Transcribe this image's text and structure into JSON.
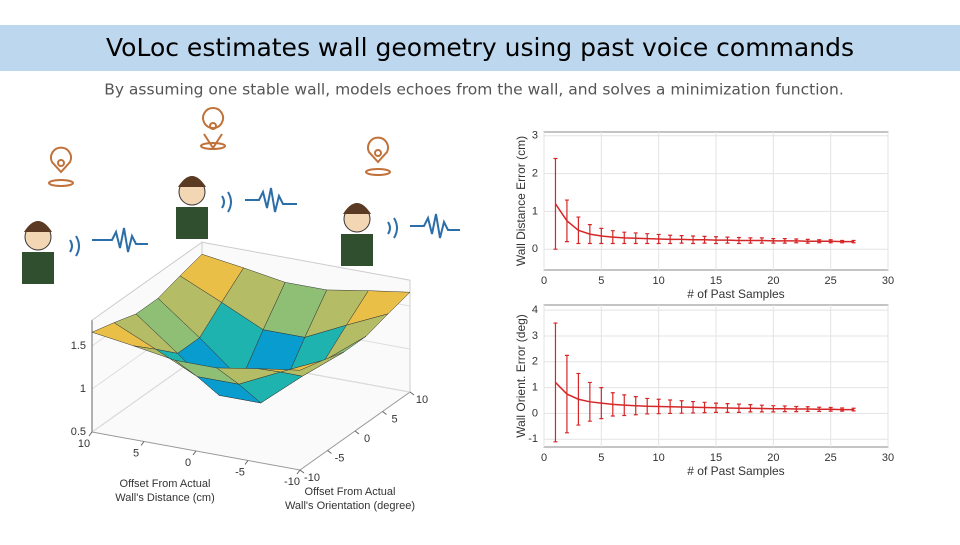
{
  "title": "VoLoc estimates wall geometry using past voice commands",
  "subtitle": "By assuming one stable wall, models echoes from the wall, and solves a minimization function.",
  "surface": {
    "zlim": [
      0.5,
      1.8
    ],
    "z_ticks": [
      0.5,
      1,
      1.5
    ],
    "d_ticks": [
      10,
      5,
      0,
      -5,
      -10
    ],
    "o_ticks": [
      -10,
      -5,
      0,
      5,
      10
    ],
    "grid_d": [
      -10,
      -6,
      -2,
      2,
      6,
      10
    ],
    "grid_o": [
      -10,
      -6,
      -2,
      2,
      6,
      10
    ],
    "z": [
      [
        1.66,
        1.59,
        1.51,
        1.51,
        1.59,
        1.66
      ],
      [
        1.59,
        1.37,
        1.14,
        1.14,
        1.37,
        1.59
      ],
      [
        1.51,
        1.14,
        0.74,
        0.74,
        1.14,
        1.51
      ],
      [
        1.51,
        1.14,
        0.74,
        0.74,
        1.14,
        1.51
      ],
      [
        1.59,
        1.37,
        1.14,
        1.14,
        1.37,
        1.59
      ],
      [
        1.66,
        1.59,
        1.51,
        1.51,
        1.59,
        1.66
      ]
    ],
    "d_label": [
      "Offset From Actual",
      "Wall's Distance (cm)"
    ],
    "o_label": [
      "Offset From Actual",
      "Wall's Orientation (degree)"
    ]
  },
  "chart_data": [
    {
      "type": "line",
      "x_label": "# of Past Samples",
      "y_label": "Wall Distance Error (cm)",
      "x": [
        1,
        2,
        3,
        4,
        5,
        6,
        7,
        8,
        9,
        10,
        11,
        12,
        13,
        14,
        15,
        16,
        17,
        18,
        19,
        20,
        21,
        22,
        23,
        24,
        25,
        26,
        27
      ],
      "values": [
        1.2,
        0.75,
        0.5,
        0.4,
        0.35,
        0.32,
        0.3,
        0.29,
        0.28,
        0.27,
        0.26,
        0.26,
        0.25,
        0.25,
        0.24,
        0.24,
        0.23,
        0.23,
        0.23,
        0.22,
        0.22,
        0.22,
        0.21,
        0.21,
        0.21,
        0.2,
        0.2
      ],
      "errors": [
        1.2,
        0.55,
        0.35,
        0.25,
        0.2,
        0.17,
        0.15,
        0.14,
        0.13,
        0.12,
        0.11,
        0.1,
        0.1,
        0.09,
        0.09,
        0.08,
        0.08,
        0.07,
        0.07,
        0.06,
        0.06,
        0.05,
        0.05,
        0.04,
        0.04,
        0.03,
        0.03
      ],
      "color": "#d62728",
      "xlim": [
        0,
        30
      ],
      "xticks": [
        0,
        5,
        10,
        15,
        20,
        25,
        30
      ],
      "ylim": [
        -0.55,
        3.1
      ],
      "yticks": [
        0,
        1,
        2,
        3
      ],
      "grid": true
    },
    {
      "type": "line",
      "x_label": "# of Past Samples",
      "y_label": "Wall Orient. Error (deg)",
      "x": [
        1,
        2,
        3,
        4,
        5,
        6,
        7,
        8,
        9,
        10,
        11,
        12,
        13,
        14,
        15,
        16,
        17,
        18,
        19,
        20,
        21,
        22,
        23,
        24,
        25,
        26,
        27
      ],
      "values": [
        1.2,
        0.75,
        0.55,
        0.45,
        0.4,
        0.35,
        0.32,
        0.3,
        0.28,
        0.27,
        0.26,
        0.25,
        0.24,
        0.23,
        0.22,
        0.21,
        0.2,
        0.2,
        0.19,
        0.18,
        0.18,
        0.17,
        0.17,
        0.16,
        0.16,
        0.15,
        0.15
      ],
      "errors": [
        2.3,
        1.5,
        1.0,
        0.75,
        0.6,
        0.45,
        0.4,
        0.35,
        0.3,
        0.28,
        0.26,
        0.24,
        0.22,
        0.2,
        0.18,
        0.17,
        0.16,
        0.14,
        0.13,
        0.12,
        0.11,
        0.1,
        0.09,
        0.08,
        0.07,
        0.06,
        0.05
      ],
      "color": "#d62728",
      "xlim": [
        0,
        30
      ],
      "xticks": [
        0,
        5,
        10,
        15,
        20,
        25,
        30
      ],
      "ylim": [
        -1.3,
        4.2
      ],
      "yticks": [
        -1,
        0,
        1,
        2,
        3,
        4
      ],
      "grid": true
    }
  ]
}
